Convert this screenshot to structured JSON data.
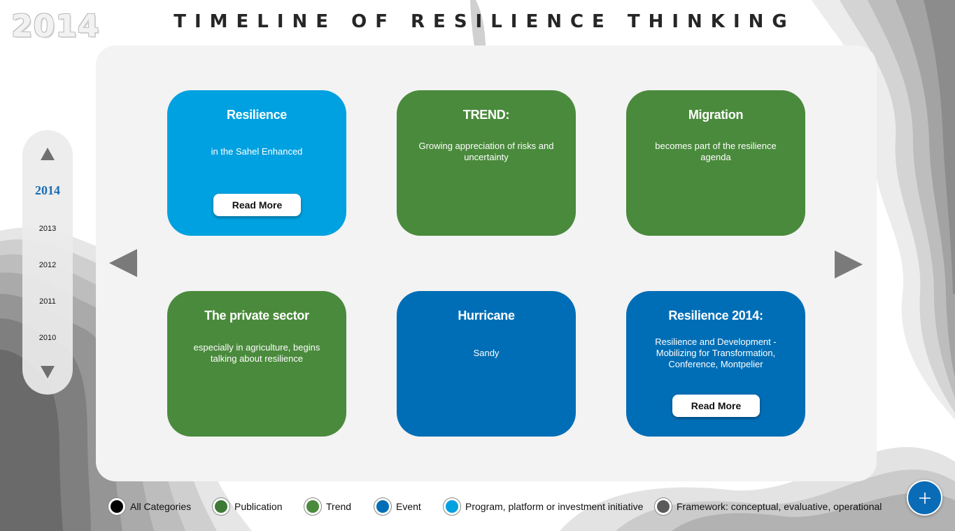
{
  "header": {
    "year_watermark": "2014",
    "title": "TIMELINE OF RESILIENCE THINKING"
  },
  "year_selector": {
    "current": "2014",
    "years": [
      "2013",
      "2012",
      "2011",
      "2010"
    ]
  },
  "cards": [
    {
      "category": "program",
      "title": "Resilience",
      "body": "in the Sahel Enhanced",
      "button": "Read More"
    },
    {
      "category": "trend",
      "title": "TREND:",
      "body": "Growing appreciation of risks and uncertainty",
      "button": ""
    },
    {
      "category": "trend",
      "title": "Migration",
      "body": "becomes part of the resilience agenda",
      "button": ""
    },
    {
      "category": "trend",
      "title": "The private sector",
      "body": "especially in agriculture, begins talking about resilience",
      "button": ""
    },
    {
      "category": "event",
      "title": "Hurricane",
      "body": "Sandy",
      "button": ""
    },
    {
      "category": "event",
      "title": "Resilience 2014:",
      "body": "Resilience and Development - Mobilizing for Transformation, Conference, Montpelier",
      "button": "Read More"
    }
  ],
  "legend": [
    {
      "label": "All Categories",
      "color": "#000000"
    },
    {
      "label": "Publication",
      "color": "#3d7a35"
    },
    {
      "label": "Trend",
      "color": "#4a8a3c"
    },
    {
      "label": "Event",
      "color": "#006eb6"
    },
    {
      "label": "Program, platform or investment initiative",
      "color": "#00a1e0"
    },
    {
      "label": "Framework: conceptual, evaluative, operational",
      "color": "#5a5a5a"
    }
  ],
  "colors": {
    "trend": "#4a8a3c",
    "event": "#006eb6",
    "program": "#00a1e0",
    "accent": "#0a6cb7",
    "arrow": "#6f6f6f"
  },
  "icons": {
    "year_up": "triangle-up-icon",
    "year_down": "triangle-down-icon",
    "prev": "triangle-left-icon",
    "next": "triangle-right-icon",
    "fab": "plus-icon"
  }
}
